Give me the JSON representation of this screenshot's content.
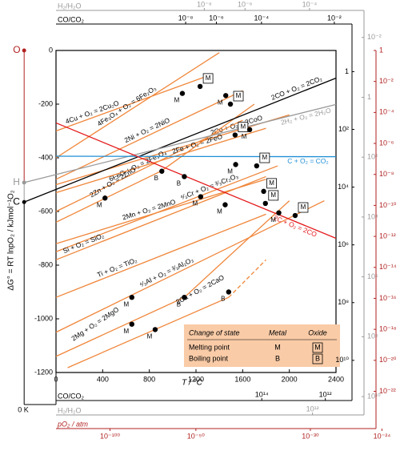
{
  "chart_data": {
    "type": "line",
    "xlabel": "T / °C",
    "ylabel": "ΔG° = RT lnpO₂ / kJmol⁻¹O₂",
    "xlim": [
      0,
      2400
    ],
    "ylim": [
      -1200,
      0
    ],
    "xticks": [
      0,
      400,
      800,
      1200,
      1600,
      2000,
      2400
    ],
    "yticks": [
      -1200,
      -1000,
      -800,
      -600,
      -400,
      -200,
      0
    ],
    "series": [
      {
        "name": "4Cu + O₂ = 2Cu₂O",
        "color": "#f0863a",
        "x": [
          0,
          1300
        ],
        "values": [
          -300,
          -95
        ]
      },
      {
        "name": "4Fe₃O₄ + O₂ = 6Fe₂O₃",
        "color": "#f0863a",
        "x": [
          0,
          1400
        ],
        "values": [
          -400,
          -8
        ]
      },
      {
        "name": "2Ni + O₂ = 2NiO",
        "color": "#f0863a",
        "x": [
          0,
          1600
        ],
        "values": [
          -480,
          -150
        ]
      },
      {
        "name": "2Co + O₂ = 2CoO",
        "color": "#f0863a",
        "x": [
          0,
          2000
        ],
        "values": [
          -500,
          -240
        ]
      },
      {
        "name": "6FeO + O₂ = 2Fe₃O₄",
        "color": "#f0863a",
        "x": [
          0,
          1600
        ],
        "values": [
          -600,
          -260
        ]
      },
      {
        "name": "2Fe + O₂ = 2FeO",
        "color": "#f0863a",
        "x": [
          0,
          1800
        ],
        "values": [
          -530,
          -290
        ]
      },
      {
        "name": "2Zn + O₂ = 2ZnO",
        "color": "#f0863a",
        "x": [
          0,
          907,
          1700
        ],
        "values": [
          -640,
          -448,
          -200
        ]
      },
      {
        "name": "⁴⁄₃Cr + O₂ = ²⁄₃Cr₂O₃",
        "color": "#f0863a",
        "x": [
          0,
          1900
        ],
        "values": [
          -750,
          -430
        ]
      },
      {
        "name": "2Mn + O₂ = 2MnO",
        "color": "#f0863a",
        "x": [
          0,
          1800
        ],
        "values": [
          -720,
          -480
        ]
      },
      {
        "name": "Si + O₂ = SiO₂",
        "color": "#f0863a",
        "x": [
          0,
          1800
        ],
        "values": [
          -780,
          -470
        ]
      },
      {
        "name": "Ti + O₂ = TiO₂",
        "color": "#f0863a",
        "x": [
          0,
          1800
        ],
        "values": [
          -920,
          -610
        ]
      },
      {
        "name": "⁴⁄₃Al + O₂ = ²⁄₃Al₂O₃",
        "color": "#f0863a",
        "x": [
          0,
          2300
        ],
        "values": [
          -1050,
          -560
        ]
      },
      {
        "name": "2Mg + O₂ = 2MgO",
        "color": "#f0863a",
        "x": [
          0,
          1100,
          2000
        ],
        "values": [
          -1140,
          -920,
          -560
        ]
      },
      {
        "name": "2Ca + O₂ = 2CaO",
        "color": "#f0863a",
        "x": [
          100,
          1480,
          1800
        ],
        "values": [
          -1182,
          -920,
          -780
        ],
        "dashed_from": 1
      },
      {
        "name": "2CO + O₂ = 2CO₂",
        "color": "#000000",
        "x": [
          -273,
          2400
        ],
        "values": [
          -565,
          -103
        ]
      },
      {
        "name": "2H₂ + O₂ = 2H₂O",
        "color": "#999999",
        "x": [
          -273,
          2400
        ],
        "values": [
          -492,
          -201
        ]
      },
      {
        "name": "C + O₂ = CO₂",
        "color": "#1f8fd6",
        "x": [
          0,
          2400
        ],
        "values": [
          -394,
          -396
        ]
      },
      {
        "name": "2C + O₂ = 2CO",
        "color": "#e41a1c",
        "x": [
          0,
          2400
        ],
        "values": [
          -270,
          -700
        ]
      }
    ],
    "points": {
      "x": [
        1083,
        1235,
        1455,
        1495,
        1535,
        1660,
        907,
        420,
        1100,
        1240,
        1450,
        1540,
        1720,
        1780,
        1795,
        1910,
        2050,
        650,
        1100,
        1480,
        650,
        850
      ],
      "values": [
        -160,
        -134,
        -168,
        -200,
        -315,
        -295,
        -450,
        -550,
        -470,
        -545,
        -575,
        -425,
        -430,
        -525,
        -570,
        -605,
        -615,
        -920,
        -920,
        -900,
        -1020,
        -1040
      ],
      "labels": [
        "M",
        "M",
        "M",
        "M",
        "M",
        "M",
        "B",
        "M",
        "B",
        "M",
        "M",
        "M",
        "M",
        "M",
        "M",
        "M",
        "M",
        "M",
        "B",
        "B",
        "M",
        "M"
      ],
      "boxed": [
        false,
        true,
        false,
        true,
        true,
        false,
        false,
        false,
        false,
        false,
        false,
        false,
        true,
        true,
        true,
        false,
        true,
        false,
        false,
        false,
        false,
        false
      ]
    },
    "legend": {
      "title": "Change of state",
      "columns": [
        "Metal",
        "Oxide"
      ],
      "rows": [
        {
          "name": "Melting point",
          "metal": "M",
          "oxide": "M"
        },
        {
          "name": "Boiling point",
          "metal": "B",
          "oxide": "B"
        }
      ]
    },
    "nomogram": {
      "origin_labels": {
        "o": "O",
        "h": "H",
        "c": "C",
        "zero": "0 K"
      },
      "h2_h2o": {
        "label": "H₂/H₂O",
        "top_ticks": [
          {
            "value": 1e-08,
            "label": "10⁻⁸"
          },
          {
            "value": 1e-06,
            "label": "10⁻⁶"
          },
          {
            "value": 0.0001,
            "label": "10⁻⁴"
          }
        ],
        "right_ticks": [
          {
            "value": 0.01,
            "label": "10⁻²"
          },
          1,
          {
            "value": 100.0,
            "label": "10²"
          },
          {
            "value": 10000.0,
            "label": "10⁴"
          },
          {
            "value": 1000000.0,
            "label": "10⁶"
          },
          {
            "value": 100000000.0,
            "label": "10⁸"
          },
          {
            "value": 10000000000.0,
            "label": "10¹⁰"
          }
        ],
        "bottom_ticks": [
          {
            "value": 1000000000000.0,
            "label": "10¹²"
          }
        ]
      },
      "co_co2": {
        "label": "CO/CO₂",
        "top_ticks": [
          {
            "value": 1e-08,
            "label": "10⁻⁸"
          },
          {
            "value": 1e-06,
            "label": "10⁻⁶"
          },
          {
            "value": 0.0001,
            "label": "10⁻⁴"
          },
          {
            "value": 0.01,
            "label": "10⁻²"
          }
        ],
        "right_ticks": [
          1,
          {
            "value": 100.0,
            "label": "10²"
          },
          {
            "value": 10000.0,
            "label": "10⁴"
          },
          {
            "value": 1000000.0,
            "label": "10⁶"
          },
          {
            "value": 100000000.0,
            "label": "10⁸"
          },
          {
            "value": 10000000000.0,
            "label": "10¹⁰"
          }
        ],
        "bottom_ticks": [
          {
            "value": 100000000000000.0,
            "label": "10¹⁴"
          },
          {
            "value": 1000000000000.0,
            "label": "10¹²"
          }
        ]
      },
      "po2": {
        "label": "pO₂ / atm",
        "right_ticks": [
          1,
          {
            "value": 0.01,
            "label": "10⁻²"
          },
          {
            "value": 0.0001,
            "label": "10⁻⁴"
          },
          {
            "value": 1e-06,
            "label": "10⁻⁶"
          },
          {
            "value": 1e-08,
            "label": "10⁻⁸"
          },
          {
            "value": 1e-10,
            "label": "10⁻¹⁰"
          },
          {
            "value": 1e-12,
            "label": "10⁻¹²"
          },
          {
            "value": 1e-14,
            "label": "10⁻¹⁴"
          },
          {
            "value": 1e-16,
            "label": "10⁻¹⁶"
          },
          {
            "value": 1e-18,
            "label": "10⁻¹⁸"
          },
          {
            "value": 1e-20,
            "label": "10⁻²⁰"
          },
          {
            "value": 1e-22,
            "label": "10⁻²²"
          }
        ],
        "bottom_ticks": [
          {
            "value": 1e-100,
            "label": "10⁻¹⁰⁰"
          },
          {
            "value": 1e-50,
            "label": "10⁻⁵⁰"
          },
          {
            "value": 1e-30,
            "label": "10⁻³⁰"
          },
          {
            "value": 1e-24,
            "label": "10⁻²⁴"
          }
        ]
      }
    }
  }
}
